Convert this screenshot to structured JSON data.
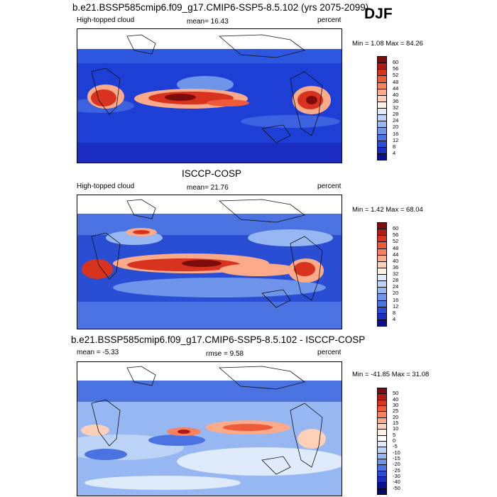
{
  "season": "DJF",
  "panels": [
    {
      "id": "model",
      "title": "b.e21.BSSP585cmip6.f09_g17.CMIP6-SSP5-8.5.102 (yrs 2075-2099)",
      "left_label": "High-topped cloud",
      "center_label": "mean=  16.43",
      "units": "percent",
      "minmax": "Min =   1.08 Max =  84.26",
      "colorbar": {
        "labels": [
          "60",
          "56",
          "52",
          "48",
          "44",
          "40",
          "36",
          "32",
          "28",
          "24",
          "20",
          "16",
          "12",
          "8",
          "4"
        ],
        "colors": [
          "#7d0c0c",
          "#b21a15",
          "#d8331f",
          "#ef5a38",
          "#f8825f",
          "#fbab89",
          "#fdd0b7",
          "#fdf0e4",
          "#dfeafb",
          "#bcd3f7",
          "#96b7f1",
          "#6e95ea",
          "#4a72e0",
          "#2a4ed3",
          "#1a2dc0",
          "#0a0f8f"
        ]
      }
    },
    {
      "id": "obs",
      "title": "ISCCP-COSP",
      "left_label": "High-topped cloud",
      "center_label": "mean=  21.76",
      "units": "percent",
      "minmax": "Min =   1.42 Max =  68.04",
      "colorbar": {
        "labels": [
          "60",
          "56",
          "52",
          "48",
          "44",
          "40",
          "36",
          "32",
          "28",
          "24",
          "20",
          "16",
          "12",
          "8",
          "4"
        ],
        "colors": [
          "#7d0c0c",
          "#b21a15",
          "#d8331f",
          "#ef5a38",
          "#f8825f",
          "#fbab89",
          "#fdd0b7",
          "#fdf0e4",
          "#dfeafb",
          "#bcd3f7",
          "#96b7f1",
          "#6e95ea",
          "#4a72e0",
          "#2a4ed3",
          "#1a2dc0",
          "#0a0f8f"
        ]
      }
    },
    {
      "id": "diff",
      "title": "b.e21.BSSP585cmip6.f09_g17.CMIP6-SSP5-8.5.102 - ISCCP-COSP",
      "left_label": "mean =  -5.33",
      "center_label": "rmse =   9.58",
      "units": "percent",
      "minmax": "Min = -41.85 Max =  31.08",
      "colorbar": {
        "labels": [
          "50",
          "40",
          "30",
          "25",
          "20",
          "15",
          "10",
          "5",
          "0",
          "-5",
          "-10",
          "-15",
          "-20",
          "-25",
          "-30",
          "-40",
          "-50"
        ],
        "colors": [
          "#7d0c0c",
          "#b21a15",
          "#d8331f",
          "#ef5a38",
          "#f8825f",
          "#fbab89",
          "#fdd0b7",
          "#fdf0e4",
          "#ffffff",
          "#dfeafb",
          "#bcd3f7",
          "#96b7f1",
          "#6e95ea",
          "#4a72e0",
          "#2a4ed3",
          "#1a2dc0",
          "#0a0f8f",
          "#050a6a"
        ]
      }
    }
  ]
}
